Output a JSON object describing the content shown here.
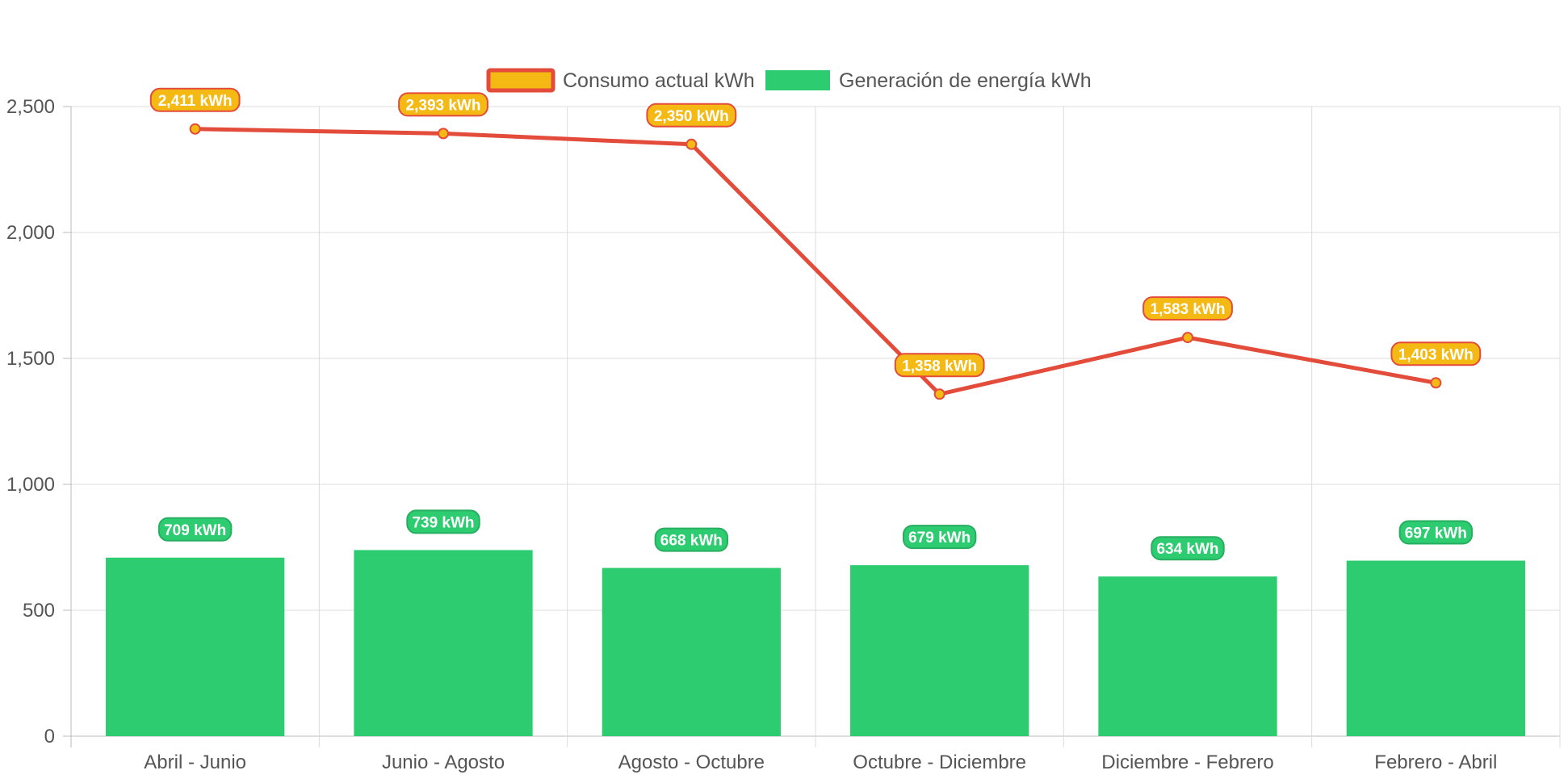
{
  "colors": {
    "line": "#e34b3a",
    "point_fill": "#f5b914",
    "bar": "#2ecc71",
    "bar_label_border": "#27ae60",
    "grid": "#dddddd",
    "axis": "#bbbbbb",
    "text": "#555555"
  },
  "legend": {
    "items": [
      {
        "label": "Consumo actual kWh",
        "swatch": "consumo"
      },
      {
        "label": "Generación de energía kWh",
        "swatch": "generacion"
      }
    ]
  },
  "chart_data": {
    "type": "bar",
    "categories": [
      "Abril - Junio",
      "Junio - Agosto",
      "Agosto - Octubre",
      "Octubre - Diciembre",
      "Diciembre - Febrero",
      "Febrero - Abril"
    ],
    "series": [
      {
        "name": "Consumo actual kWh",
        "render": "line",
        "values": [
          2411,
          2393,
          2350,
          1358,
          1583,
          1403
        ],
        "labels": [
          "2,411 kWh",
          "2,393 kWh",
          "2,350 kWh",
          "1,358 kWh",
          "1,583 kWh",
          "1,403 kWh"
        ]
      },
      {
        "name": "Generación de energía kWh",
        "render": "bar",
        "values": [
          709,
          739,
          668,
          679,
          634,
          697
        ],
        "labels": [
          "709 kWh",
          "739 kWh",
          "668 kWh",
          "679 kWh",
          "634 kWh",
          "697 kWh"
        ]
      }
    ],
    "y_ticks": [
      0,
      500,
      1000,
      1500,
      2000,
      2500
    ],
    "y_tick_labels": [
      "0",
      "500",
      "1,000",
      "1,500",
      "2,000",
      "2,500"
    ],
    "ylim": [
      0,
      2500
    ],
    "grid": true,
    "legend_position": "top"
  }
}
